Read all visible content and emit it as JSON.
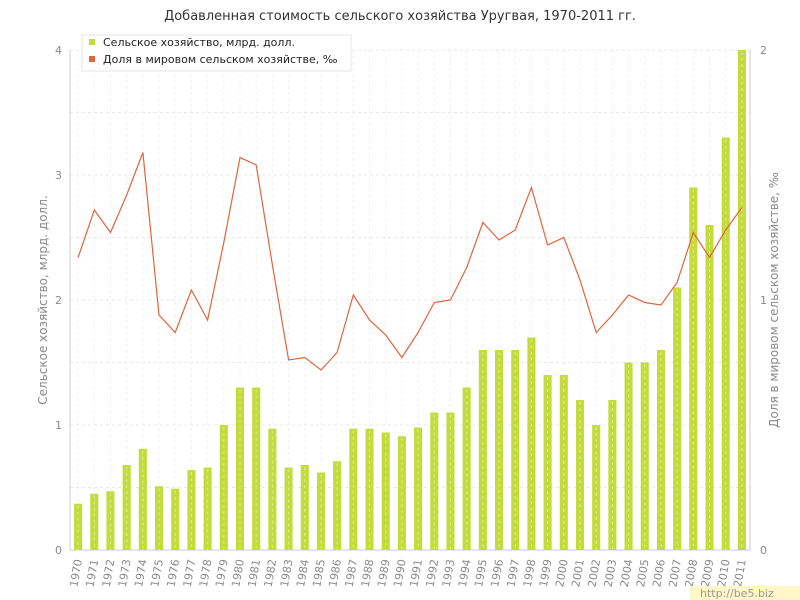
{
  "chart_data": {
    "type": "bar",
    "title": "Добавленная стоимость сельского хозяйства Уругвая, 1970-2011 гг.",
    "ylabel": "Сельское хозяйство, млрд. долл.",
    "y2label": "Доля в мировом сельском хозяйстве, ‰",
    "ylim": [
      0,
      4
    ],
    "y2lim": [
      0,
      2
    ],
    "yticks": [
      0,
      1,
      2,
      3,
      4
    ],
    "y2ticks": [
      0,
      1,
      2
    ],
    "grid": true,
    "legend_position": "top-left",
    "categories": [
      "1970",
      "1971",
      "1972",
      "1973",
      "1974",
      "1975",
      "1976",
      "1977",
      "1978",
      "1979",
      "1980",
      "1981",
      "1982",
      "1983",
      "1984",
      "1985",
      "1986",
      "1987",
      "1988",
      "1989",
      "1990",
      "1991",
      "1992",
      "1993",
      "1994",
      "1995",
      "1996",
      "1997",
      "1998",
      "1999",
      "2000",
      "2001",
      "2002",
      "2003",
      "2004",
      "2005",
      "2006",
      "2007",
      "2008",
      "2009",
      "2010",
      "2011"
    ],
    "series": [
      {
        "name": "Сельское хозяйство, млрд. долл.",
        "type": "bar",
        "axis": "left",
        "color": "#c3dc3c",
        "values": [
          0.37,
          0.45,
          0.47,
          0.68,
          0.81,
          0.51,
          0.49,
          0.64,
          0.66,
          1.0,
          1.3,
          1.3,
          0.97,
          0.66,
          0.68,
          0.62,
          0.71,
          0.97,
          0.97,
          0.94,
          0.91,
          0.98,
          1.1,
          1.1,
          1.3,
          1.6,
          1.6,
          1.6,
          1.7,
          1.4,
          1.4,
          1.2,
          1.0,
          1.2,
          1.5,
          1.5,
          1.6,
          2.1,
          2.9,
          2.6,
          3.3,
          4.0
        ]
      },
      {
        "name": "Доля в мировом сельском хозяйстве, ‰",
        "type": "line",
        "axis": "right",
        "color": "#e0643c",
        "values": [
          1.17,
          1.36,
          1.27,
          1.42,
          1.59,
          0.94,
          0.87,
          1.04,
          0.92,
          1.23,
          1.57,
          1.54,
          1.14,
          0.76,
          0.77,
          0.72,
          0.79,
          1.02,
          0.92,
          0.86,
          0.77,
          0.87,
          0.99,
          1.0,
          1.13,
          1.31,
          1.24,
          1.28,
          1.45,
          1.22,
          1.25,
          1.08,
          0.87,
          0.94,
          1.02,
          0.99,
          0.98,
          1.07,
          1.27,
          1.17,
          1.28,
          1.37
        ]
      }
    ]
  },
  "watermark": "http://be5.biz"
}
